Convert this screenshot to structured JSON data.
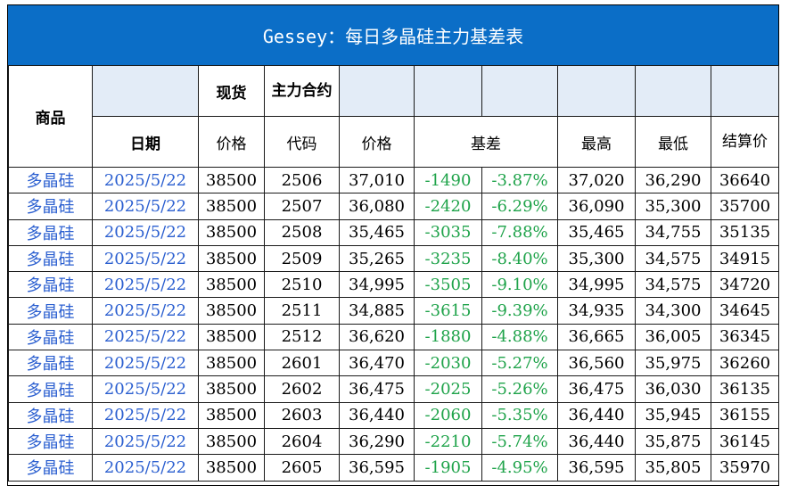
{
  "title": "Gessey：每日多晶硅主力基差表",
  "headers": {
    "product": "商品",
    "date": "日期",
    "spot": "现货",
    "main_contract": "主力合约",
    "price": "价格",
    "code": "代码",
    "futures_price": "价格",
    "basis": "基差",
    "high": "最高",
    "low": "最低",
    "settle": "结算价"
  },
  "rows": [
    {
      "product": "多晶硅",
      "date": "2025/5/22",
      "spot": "38500",
      "code": "2506",
      "price": "37,010",
      "basis": "-1490",
      "basis_pct": "-3.87%",
      "high": "37,020",
      "low": "36,290",
      "settle": "36640"
    },
    {
      "product": "多晶硅",
      "date": "2025/5/22",
      "spot": "38500",
      "code": "2507",
      "price": "36,080",
      "basis": "-2420",
      "basis_pct": "-6.29%",
      "high": "36,090",
      "low": "35,300",
      "settle": "35700"
    },
    {
      "product": "多晶硅",
      "date": "2025/5/22",
      "spot": "38500",
      "code": "2508",
      "price": "35,465",
      "basis": "-3035",
      "basis_pct": "-7.88%",
      "high": "35,465",
      "low": "34,755",
      "settle": "35135"
    },
    {
      "product": "多晶硅",
      "date": "2025/5/22",
      "spot": "38500",
      "code": "2509",
      "price": "35,265",
      "basis": "-3235",
      "basis_pct": "-8.40%",
      "high": "35,300",
      "low": "34,575",
      "settle": "34915"
    },
    {
      "product": "多晶硅",
      "date": "2025/5/22",
      "spot": "38500",
      "code": "2510",
      "price": "34,995",
      "basis": "-3505",
      "basis_pct": "-9.10%",
      "high": "34,995",
      "low": "34,575",
      "settle": "34720"
    },
    {
      "product": "多晶硅",
      "date": "2025/5/22",
      "spot": "38500",
      "code": "2511",
      "price": "34,885",
      "basis": "-3615",
      "basis_pct": "-9.39%",
      "high": "34,935",
      "low": "34,300",
      "settle": "34645"
    },
    {
      "product": "多晶硅",
      "date": "2025/5/22",
      "spot": "38500",
      "code": "2512",
      "price": "36,620",
      "basis": "-1880",
      "basis_pct": "-4.88%",
      "high": "36,665",
      "low": "36,005",
      "settle": "36345"
    },
    {
      "product": "多晶硅",
      "date": "2025/5/22",
      "spot": "38500",
      "code": "2601",
      "price": "36,470",
      "basis": "-2030",
      "basis_pct": "-5.27%",
      "high": "36,560",
      "low": "35,975",
      "settle": "36260"
    },
    {
      "product": "多晶硅",
      "date": "2025/5/22",
      "spot": "38500",
      "code": "2602",
      "price": "36,475",
      "basis": "-2025",
      "basis_pct": "-5.26%",
      "high": "36,475",
      "low": "36,030",
      "settle": "36135"
    },
    {
      "product": "多晶硅",
      "date": "2025/5/22",
      "spot": "38500",
      "code": "2603",
      "price": "36,440",
      "basis": "-2060",
      "basis_pct": "-5.35%",
      "high": "36,440",
      "low": "35,945",
      "settle": "36155"
    },
    {
      "product": "多晶硅",
      "date": "2025/5/22",
      "spot": "38500",
      "code": "2604",
      "price": "36,290",
      "basis": "-2210",
      "basis_pct": "-5.74%",
      "high": "36,440",
      "low": "35,875",
      "settle": "36145"
    },
    {
      "product": "多晶硅",
      "date": "2025/5/22",
      "spot": "38500",
      "code": "2605",
      "price": "36,595",
      "basis": "-1905",
      "basis_pct": "-4.95%",
      "high": "36,595",
      "low": "35,805",
      "settle": "35970"
    }
  ],
  "colors": {
    "title_bg": "#0b6ec7",
    "header_shade": "#dfe9f6",
    "product_text": "#2b5fd0",
    "basis_text": "#1fa34a"
  }
}
